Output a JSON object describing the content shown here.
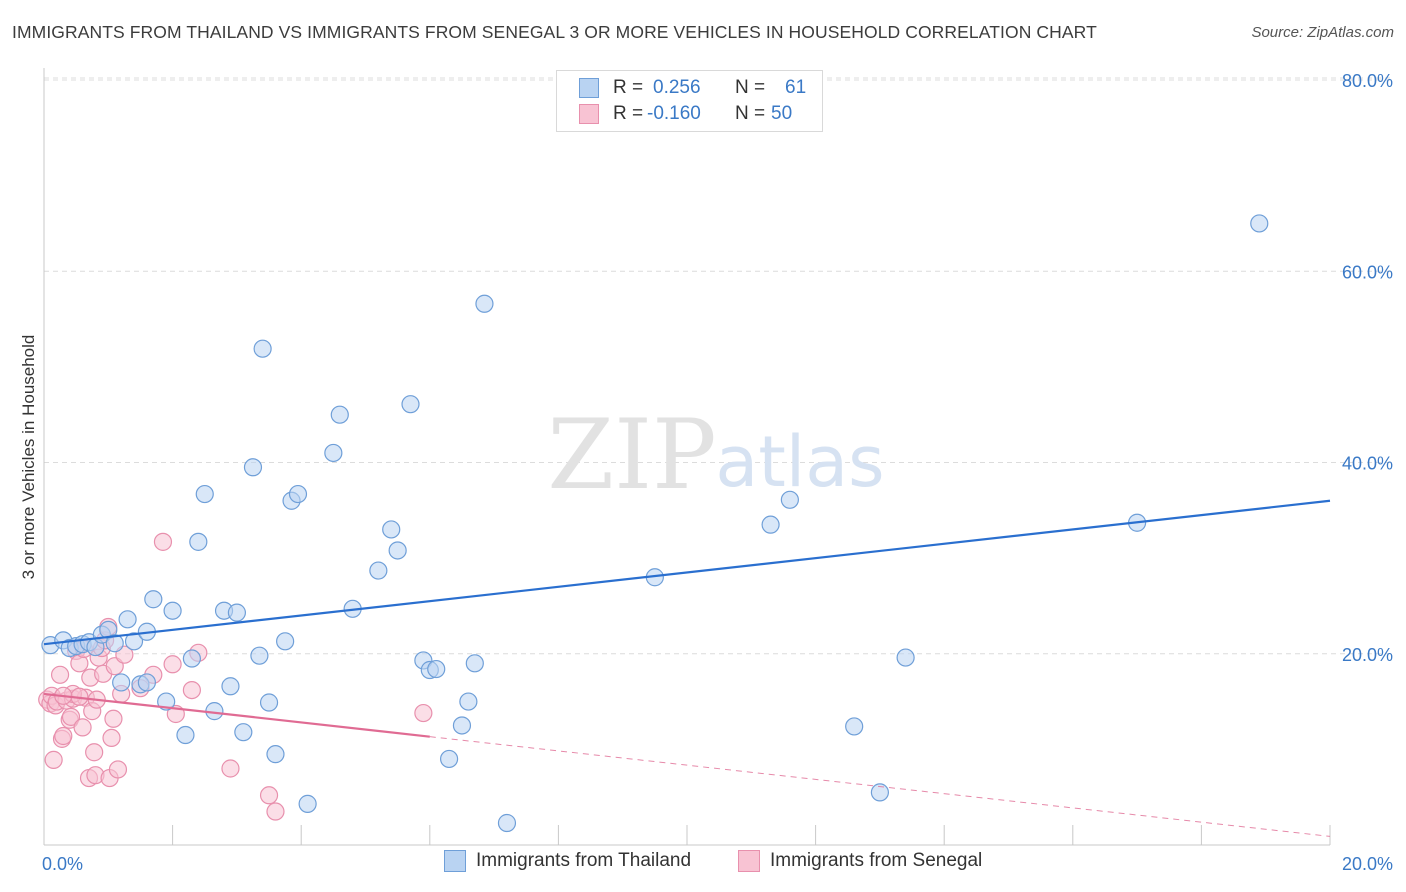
{
  "header": {
    "title": "IMMIGRANTS FROM THAILAND VS IMMIGRANTS FROM SENEGAL 3 OR MORE VEHICLES IN HOUSEHOLD CORRELATION CHART",
    "source": "Source: ZipAtlas.com"
  },
  "watermark": {
    "zip": "ZIP",
    "atlas": "atlas"
  },
  "legend_top": {
    "rows": [
      {
        "r_label": "R =",
        "r_value": "0.256",
        "n_label": "N =",
        "n_value": "61"
      },
      {
        "r_label": "R =",
        "r_value": "-0.160",
        "n_label": "N =",
        "n_value": "50"
      }
    ]
  },
  "legend_bottom": {
    "items": [
      {
        "label": "Immigrants from Thailand"
      },
      {
        "label": "Immigrants from Senegal"
      }
    ]
  },
  "colors": {
    "thailand_fill": "#b9d3f2",
    "thailand_stroke": "#6f9fd8",
    "thailand_line": "#2a6fcf",
    "senegal_fill": "#f8c3d3",
    "senegal_stroke": "#e890ad",
    "senegal_line": "#e06b93",
    "value_text": "#3a79c6",
    "grid": "#dcdcdc"
  },
  "chart_data": {
    "type": "scatter",
    "title": "IMMIGRANTS FROM THAILAND VS IMMIGRANTS FROM SENEGAL 3 OR MORE VEHICLES IN HOUSEHOLD CORRELATION CHART",
    "xlabel": "",
    "ylabel": "3 or more Vehicles in Household",
    "xlim": [
      0,
      20
    ],
    "ylim": [
      0,
      80
    ],
    "x_tick_labels": [
      {
        "value": 0,
        "label": "0.0%"
      },
      {
        "value": 20,
        "label": "20.0%"
      }
    ],
    "y_tick_labels": [
      {
        "value": 20,
        "label": "20.0%"
      },
      {
        "value": 40,
        "label": "40.0%"
      },
      {
        "value": 60,
        "label": "60.0%"
      },
      {
        "value": 80,
        "label": "80.0%"
      }
    ],
    "x_minor_ticks": [
      2,
      4,
      6,
      8,
      10,
      12,
      14,
      16,
      18,
      20
    ],
    "grid": true,
    "legend_position": "top-center",
    "series": [
      {
        "name": "Immigrants from Thailand",
        "R": 0.256,
        "N": 61,
        "trend": {
          "x": [
            0,
            20
          ],
          "y": [
            21.0,
            36.0
          ],
          "dashed_from": null
        },
        "points": [
          [
            0.1,
            20.9
          ],
          [
            0.3,
            21.4
          ],
          [
            0.4,
            20.6
          ],
          [
            0.5,
            20.8
          ],
          [
            0.6,
            21.0
          ],
          [
            0.7,
            21.2
          ],
          [
            0.8,
            20.7
          ],
          [
            0.9,
            22.0
          ],
          [
            1.0,
            22.5
          ],
          [
            1.1,
            21.1
          ],
          [
            1.2,
            17.0
          ],
          [
            1.3,
            23.6
          ],
          [
            1.4,
            21.3
          ],
          [
            1.5,
            16.8
          ],
          [
            1.6,
            22.3
          ],
          [
            1.7,
            25.7
          ],
          [
            1.9,
            15.0
          ],
          [
            2.0,
            24.5
          ],
          [
            2.2,
            11.5
          ],
          [
            2.3,
            19.5
          ],
          [
            2.4,
            31.7
          ],
          [
            2.5,
            36.7
          ],
          [
            2.65,
            14.0
          ],
          [
            2.8,
            24.5
          ],
          [
            2.9,
            16.6
          ],
          [
            3.0,
            24.3
          ],
          [
            3.1,
            11.8
          ],
          [
            3.25,
            39.5
          ],
          [
            3.35,
            19.8
          ],
          [
            3.4,
            51.9
          ],
          [
            3.5,
            14.9
          ],
          [
            3.6,
            9.5
          ],
          [
            3.75,
            21.3
          ],
          [
            3.85,
            36.0
          ],
          [
            3.95,
            36.7
          ],
          [
            4.1,
            4.3
          ],
          [
            4.5,
            41.0
          ],
          [
            4.6,
            45.0
          ],
          [
            4.8,
            24.7
          ],
          [
            5.2,
            28.7
          ],
          [
            5.4,
            33.0
          ],
          [
            5.5,
            30.8
          ],
          [
            5.7,
            46.1
          ],
          [
            5.9,
            19.3
          ],
          [
            6.0,
            18.3
          ],
          [
            6.1,
            18.4
          ],
          [
            6.3,
            9.0
          ],
          [
            6.5,
            12.5
          ],
          [
            6.6,
            15.0
          ],
          [
            6.7,
            19.0
          ],
          [
            6.85,
            56.6
          ],
          [
            7.2,
            2.3
          ],
          [
            9.5,
            28.0
          ],
          [
            11.3,
            33.5
          ],
          [
            11.6,
            36.1
          ],
          [
            12.6,
            12.4
          ],
          [
            13.0,
            5.5
          ],
          [
            13.4,
            19.6
          ],
          [
            17.0,
            33.7
          ],
          [
            18.9,
            65.0
          ],
          [
            1.6,
            17.0
          ]
        ]
      },
      {
        "name": "Immigrants from Senegal",
        "R": -0.16,
        "N": 50,
        "trend": {
          "x": [
            0,
            20
          ],
          "y": [
            15.8,
            0.9
          ],
          "dashed_from": 6.0
        },
        "points": [
          [
            0.05,
            15.2
          ],
          [
            0.1,
            14.8
          ],
          [
            0.12,
            15.6
          ],
          [
            0.15,
            8.9
          ],
          [
            0.18,
            14.6
          ],
          [
            0.2,
            15.0
          ],
          [
            0.25,
            17.8
          ],
          [
            0.28,
            11.1
          ],
          [
            0.3,
            11.4
          ],
          [
            0.35,
            15.1
          ],
          [
            0.4,
            13.1
          ],
          [
            0.42,
            13.4
          ],
          [
            0.45,
            15.3
          ],
          [
            0.5,
            20.3
          ],
          [
            0.55,
            19.0
          ],
          [
            0.6,
            12.3
          ],
          [
            0.62,
            20.5
          ],
          [
            0.65,
            15.4
          ],
          [
            0.7,
            7.0
          ],
          [
            0.72,
            17.5
          ],
          [
            0.75,
            14.0
          ],
          [
            0.78,
            9.7
          ],
          [
            0.8,
            7.3
          ],
          [
            0.82,
            15.2
          ],
          [
            0.85,
            19.6
          ],
          [
            0.9,
            20.6
          ],
          [
            0.92,
            17.9
          ],
          [
            0.95,
            21.4
          ],
          [
            1.0,
            22.8
          ],
          [
            1.02,
            7.0
          ],
          [
            1.05,
            11.2
          ],
          [
            1.08,
            13.2
          ],
          [
            1.1,
            18.7
          ],
          [
            1.15,
            7.9
          ],
          [
            1.2,
            15.8
          ],
          [
            1.25,
            19.9
          ],
          [
            1.5,
            16.4
          ],
          [
            1.7,
            17.8
          ],
          [
            1.85,
            31.7
          ],
          [
            2.0,
            18.9
          ],
          [
            2.05,
            13.7
          ],
          [
            2.3,
            16.2
          ],
          [
            2.4,
            20.1
          ],
          [
            2.9,
            8.0
          ],
          [
            3.5,
            5.2
          ],
          [
            3.6,
            3.5
          ],
          [
            5.9,
            13.8
          ],
          [
            0.45,
            15.8
          ],
          [
            0.55,
            15.5
          ],
          [
            0.3,
            15.6
          ]
        ]
      }
    ]
  }
}
